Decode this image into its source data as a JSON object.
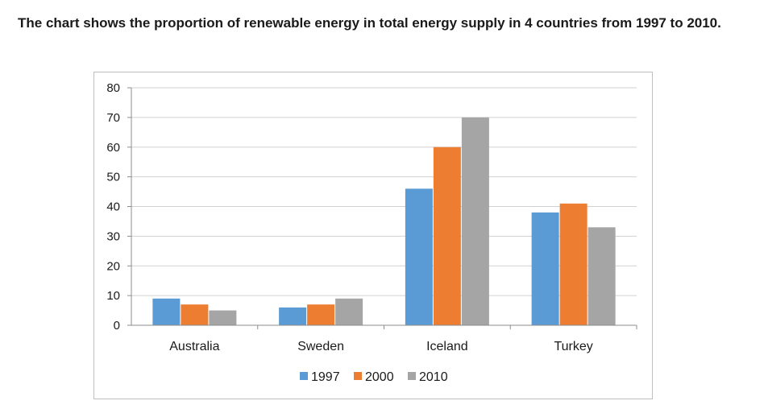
{
  "heading": "The chart shows the proportion of renewable energy in total energy supply in 4 countries from 1997 to 2010.",
  "chart_data": {
    "type": "bar",
    "title": "",
    "xlabel": "",
    "ylabel": "",
    "categories": [
      "Australia",
      "Sweden",
      "Iceland",
      "Turkey"
    ],
    "series": [
      {
        "name": "1997",
        "values": [
          9,
          6,
          46,
          38
        ],
        "color": "#5b9bd5"
      },
      {
        "name": "2000",
        "values": [
          7,
          7,
          60,
          41
        ],
        "color": "#ed7d31"
      },
      {
        "name": "2010",
        "values": [
          5,
          9,
          70,
          33
        ],
        "color": "#a5a5a5"
      }
    ],
    "ylim": [
      0,
      80
    ],
    "yticks": [
      "0",
      "10",
      "20",
      "30",
      "40",
      "50",
      "60",
      "70",
      "80"
    ],
    "grid": true,
    "legend_position": "bottom"
  }
}
